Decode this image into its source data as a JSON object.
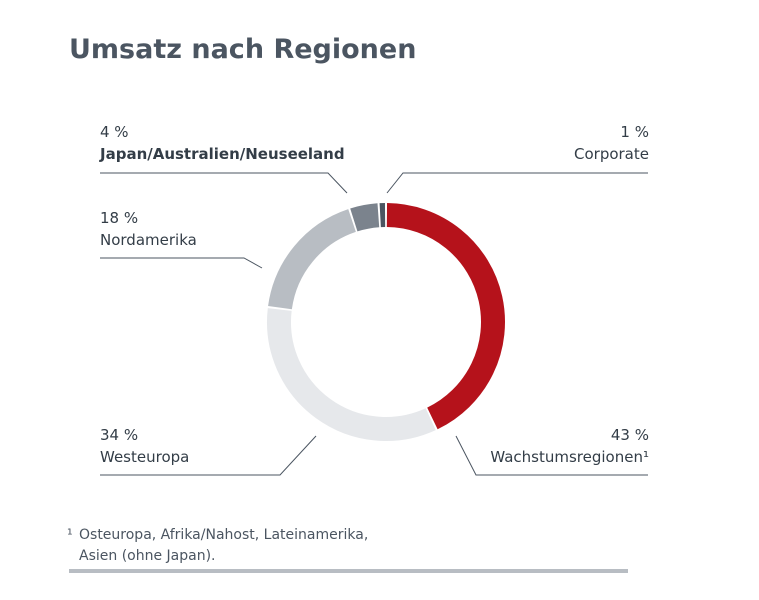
{
  "title": "Umsatz nach Regionen",
  "chart_data": {
    "type": "pie",
    "variant": "donut",
    "title": "Umsatz nach Regionen",
    "unit": "%",
    "slices": [
      {
        "name": "Wachstumsregionen¹",
        "value": 43,
        "label": "43 %",
        "color": "#b5121b"
      },
      {
        "name": "Westeuropa",
        "value": 34,
        "label": "34 %",
        "color": "#e6e8eb"
      },
      {
        "name": "Nordamerika",
        "value": 18,
        "label": "18 %",
        "color": "#b8bdc3"
      },
      {
        "name": "Japan/Australien/Neuseeland",
        "value": 4,
        "label": "4 %",
        "color": "#7b838d"
      },
      {
        "name": "Corporate",
        "value": 1,
        "label": "1 %",
        "color": "#4b5561"
      }
    ]
  },
  "footnote": {
    "marker": "¹",
    "line1": "Osteuropa, Afrika/Nahost, Lateinamerika,",
    "line2": "Asien (ohne Japan)."
  }
}
